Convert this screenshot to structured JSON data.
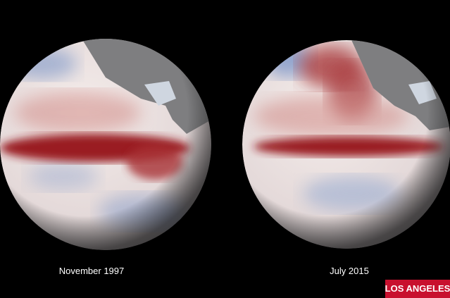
{
  "captions": [
    "November 1997",
    "July 2015"
  ],
  "badge": "LOS ANGELES"
}
